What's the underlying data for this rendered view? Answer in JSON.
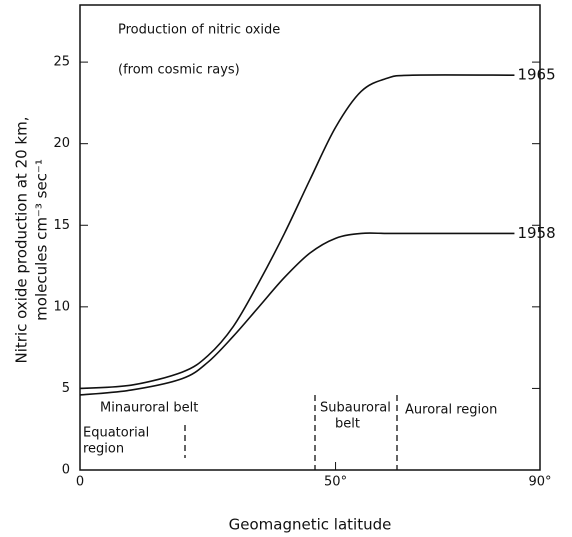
{
  "chart_data": {
    "type": "line",
    "title": "Production of nitric oxide",
    "subtitle": "(from cosmic rays)",
    "ylabel": [
      "Nitric oxide production at 20 km,",
      "molecules cm⁻³ sec⁻¹"
    ],
    "xlabel": "Geomagnetic latitude",
    "x": [
      0,
      10,
      20,
      25,
      30,
      35,
      40,
      45,
      50,
      55,
      60,
      65,
      85
    ],
    "series": [
      {
        "name": "1965",
        "color": "#111111",
        "values": [
          5.0,
          5.2,
          6.0,
          7.0,
          8.8,
          11.5,
          14.5,
          17.8,
          21.0,
          23.2,
          24.0,
          24.2,
          24.2
        ]
      },
      {
        "name": "1958",
        "color": "#111111",
        "values": [
          4.6,
          4.9,
          5.6,
          6.6,
          8.2,
          10.0,
          11.8,
          13.3,
          14.2,
          14.5,
          14.5,
          14.5,
          14.5
        ]
      }
    ],
    "xlim": [
      0,
      90
    ],
    "xticks": [
      0,
      {
        "value": 50,
        "label": "50°"
      },
      {
        "value": 90,
        "label": "90°"
      }
    ],
    "ylim": [
      0,
      28.5
    ],
    "yticks": [
      0,
      5,
      10,
      15,
      20,
      25
    ],
    "annotations": [
      {
        "text": [
          "Minauroral belt"
        ]
      },
      {
        "text": [
          "Equatorial",
          "region"
        ]
      },
      {
        "text": [
          "Subauroral",
          "belt"
        ]
      },
      {
        "text": [
          "Auroral region"
        ]
      }
    ]
  }
}
